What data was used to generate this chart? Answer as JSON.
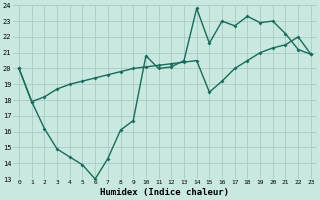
{
  "xlabel": "Humidex (Indice chaleur)",
  "bg_color": "#c8e8e0",
  "line_color": "#1a6b5a",
  "grid_color": "#a8ccc8",
  "xlim": [
    -0.5,
    23.5
  ],
  "ylim": [
    13,
    24
  ],
  "xticks": [
    0,
    1,
    2,
    3,
    4,
    5,
    6,
    7,
    8,
    9,
    10,
    11,
    12,
    13,
    14,
    15,
    16,
    17,
    18,
    19,
    20,
    21,
    22,
    23
  ],
  "yticks": [
    13,
    14,
    15,
    16,
    17,
    18,
    19,
    20,
    21,
    22,
    23,
    24
  ],
  "upper_x": [
    0,
    1,
    2,
    3,
    4,
    5,
    6,
    7,
    8,
    9,
    10,
    11,
    12,
    13,
    14,
    15,
    16,
    17,
    18,
    19,
    20,
    21,
    22,
    23
  ],
  "upper_y": [
    20.0,
    17.9,
    16.2,
    14.9,
    14.4,
    13.9,
    13.0,
    14.3,
    16.1,
    16.7,
    20.8,
    20.0,
    20.1,
    20.5,
    23.8,
    21.6,
    23.0,
    22.7,
    23.3,
    22.9,
    23.0,
    22.2,
    21.2,
    20.9
  ],
  "lower_x": [
    0,
    1,
    2,
    3,
    4,
    5,
    6,
    7,
    8,
    9,
    10,
    11,
    12,
    13,
    14,
    15,
    16,
    17,
    18,
    19,
    20,
    21,
    22,
    23
  ],
  "lower_y": [
    20.0,
    17.9,
    18.2,
    18.7,
    19.0,
    19.2,
    19.4,
    19.6,
    19.8,
    20.0,
    20.1,
    20.2,
    20.3,
    20.4,
    20.5,
    18.5,
    19.2,
    20.0,
    20.5,
    21.0,
    21.3,
    21.5,
    22.0,
    20.9
  ]
}
